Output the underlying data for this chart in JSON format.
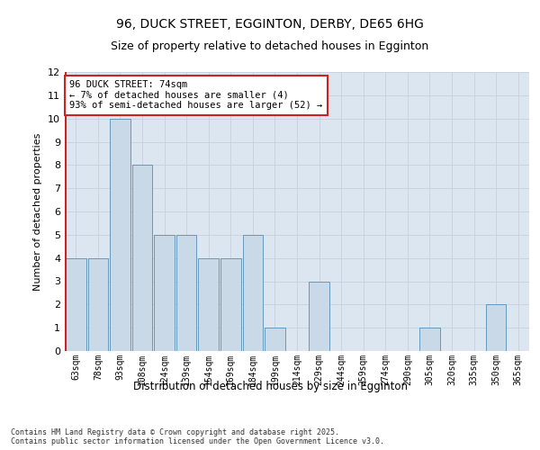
{
  "title1": "96, DUCK STREET, EGGINTON, DERBY, DE65 6HG",
  "title2": "Size of property relative to detached houses in Egginton",
  "xlabel": "Distribution of detached houses by size in Egginton",
  "ylabel": "Number of detached properties",
  "categories": [
    "63sqm",
    "78sqm",
    "93sqm",
    "108sqm",
    "124sqm",
    "139sqm",
    "154sqm",
    "169sqm",
    "184sqm",
    "199sqm",
    "214sqm",
    "229sqm",
    "244sqm",
    "259sqm",
    "274sqm",
    "290sqm",
    "305sqm",
    "320sqm",
    "335sqm",
    "350sqm",
    "365sqm"
  ],
  "values": [
    4,
    4,
    10,
    8,
    5,
    5,
    4,
    4,
    5,
    1,
    0,
    3,
    0,
    0,
    0,
    0,
    1,
    0,
    0,
    2,
    0
  ],
  "bar_color": "#c9d9e8",
  "bar_edge_color": "#6699bb",
  "highlight_color": "#cc2222",
  "annotation_text": "96 DUCK STREET: 74sqm\n← 7% of detached houses are smaller (4)\n93% of semi-detached houses are larger (52) →",
  "annotation_box_color": "#ffffff",
  "annotation_box_edge": "#cc2222",
  "ylim": [
    0,
    12
  ],
  "yticks": [
    0,
    1,
    2,
    3,
    4,
    5,
    6,
    7,
    8,
    9,
    10,
    11,
    12
  ],
  "grid_color": "#c8d0dc",
  "bg_color": "#dce6f0",
  "footnote1": "Contains HM Land Registry data © Crown copyright and database right 2025.",
  "footnote2": "Contains public sector information licensed under the Open Government Licence v3.0."
}
